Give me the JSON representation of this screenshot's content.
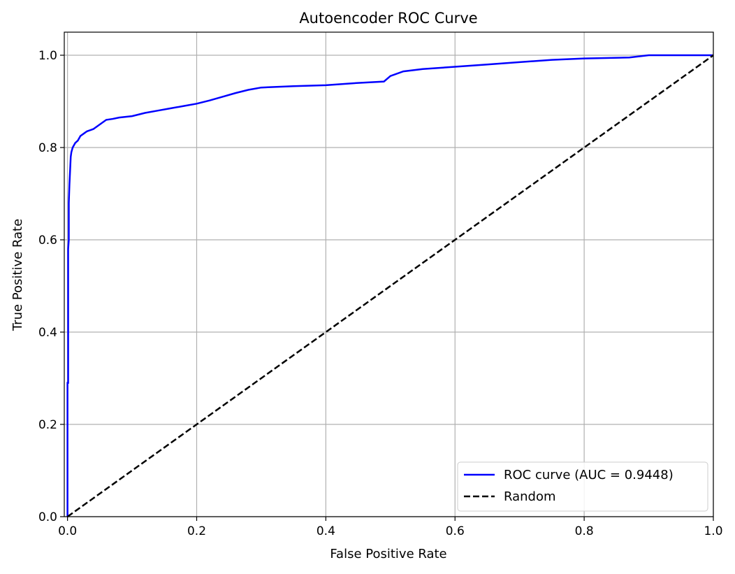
{
  "chart_data": {
    "type": "line",
    "title": "Autoencoder ROC Curve",
    "xlabel": "False Positive Rate",
    "ylabel": "True Positive Rate",
    "xlim": [
      -0.005,
      1.0
    ],
    "ylim": [
      0.0,
      1.05
    ],
    "grid": true,
    "legend_position": "lower-right",
    "x_ticks": [
      0.0,
      0.2,
      0.4,
      0.6,
      0.8,
      1.0
    ],
    "x_tick_labels": [
      "0.0",
      "0.2",
      "0.4",
      "0.6",
      "0.8",
      "1.0"
    ],
    "y_ticks": [
      0.0,
      0.2,
      0.4,
      0.6,
      0.8,
      1.0
    ],
    "y_tick_labels": [
      "0.0",
      "0.2",
      "0.4",
      "0.6",
      "0.8",
      "1.0"
    ],
    "series": [
      {
        "name": "ROC curve (AUC = 0.9448)",
        "color": "#0000ff",
        "line_style": "solid",
        "x": [
          0.0,
          0.0,
          0.001,
          0.001,
          0.002,
          0.002,
          0.003,
          0.004,
          0.005,
          0.006,
          0.008,
          0.012,
          0.016,
          0.02,
          0.025,
          0.03,
          0.04,
          0.05,
          0.06,
          0.07,
          0.08,
          0.1,
          0.12,
          0.14,
          0.16,
          0.18,
          0.2,
          0.22,
          0.24,
          0.26,
          0.28,
          0.3,
          0.35,
          0.4,
          0.45,
          0.49,
          0.5,
          0.52,
          0.55,
          0.6,
          0.65,
          0.7,
          0.75,
          0.8,
          0.87,
          0.9,
          1.0
        ],
        "y": [
          0.0,
          0.29,
          0.29,
          0.58,
          0.6,
          0.68,
          0.72,
          0.75,
          0.78,
          0.79,
          0.8,
          0.81,
          0.815,
          0.825,
          0.83,
          0.835,
          0.84,
          0.85,
          0.86,
          0.862,
          0.865,
          0.868,
          0.875,
          0.88,
          0.885,
          0.89,
          0.895,
          0.902,
          0.91,
          0.918,
          0.925,
          0.93,
          0.933,
          0.935,
          0.94,
          0.943,
          0.955,
          0.965,
          0.97,
          0.975,
          0.98,
          0.985,
          0.99,
          0.993,
          0.995,
          1.0,
          1.0
        ]
      },
      {
        "name": "Random",
        "color": "#000000",
        "line_style": "dashed",
        "x": [
          0.0,
          1.0
        ],
        "y": [
          0.0,
          1.0
        ]
      }
    ]
  }
}
